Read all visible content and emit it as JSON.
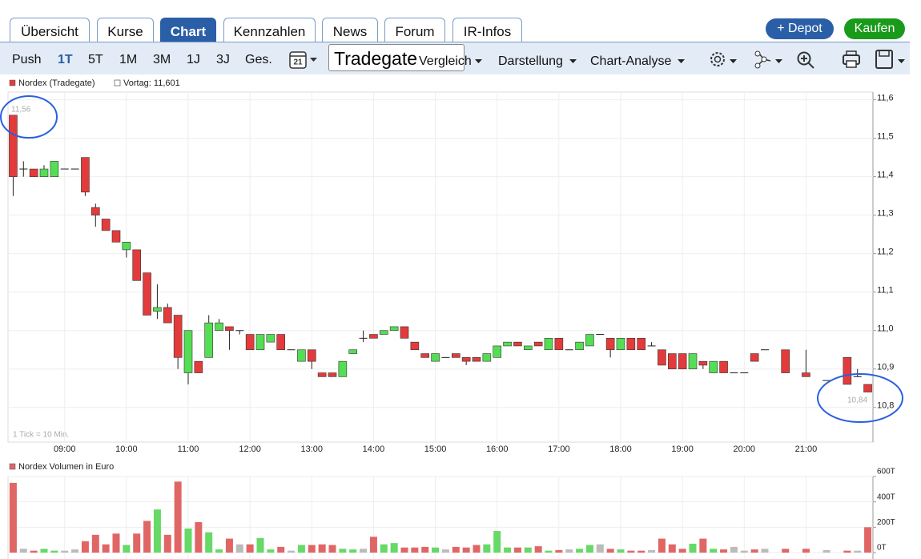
{
  "ui": {
    "tabs": [
      "Übersicht",
      "Kurse",
      "Chart",
      "Kennzahlen",
      "News",
      "Forum",
      "IR-Infos"
    ],
    "depot_button": "+ Depot",
    "buy_button": "Kaufen",
    "periods": [
      "Push",
      "1T",
      "5T",
      "1M",
      "3M",
      "1J",
      "3J",
      "Ges."
    ],
    "calendar_day": "21",
    "exchange": "Tradegate",
    "menus": [
      "Vergleich",
      "Darstellung",
      "Chart-Analyse"
    ]
  },
  "chart_data": [
    {
      "type": "candlestick",
      "series_name": "Nordex (Tradegate)",
      "previous_close_label": "Vortag: 11,601",
      "high_label": "11,56",
      "last_label": "10,84",
      "note": "1 Tick = 10 Min.",
      "up_color": "#55dd55",
      "down_color": "#e33b3b",
      "x": [
        "08:10",
        "08:20",
        "08:30",
        "08:40",
        "08:50",
        "09:00",
        "09:10",
        "09:20",
        "09:30",
        "09:40",
        "09:50",
        "10:00",
        "10:10",
        "10:20",
        "10:30",
        "10:40",
        "10:50",
        "11:00",
        "11:10",
        "11:20",
        "11:30",
        "11:40",
        "11:50",
        "12:00",
        "12:10",
        "12:20",
        "12:30",
        "12:40",
        "12:50",
        "13:00",
        "13:10",
        "13:20",
        "13:30",
        "13:40",
        "13:50",
        "14:00",
        "14:10",
        "14:20",
        "14:30",
        "14:40",
        "14:50",
        "15:00",
        "15:10",
        "15:20",
        "15:30",
        "15:40",
        "15:50",
        "16:00",
        "16:10",
        "16:20",
        "16:30",
        "16:40",
        "16:50",
        "17:00",
        "17:10",
        "17:20",
        "17:30",
        "17:40",
        "17:50",
        "18:00",
        "18:10",
        "18:20",
        "18:30",
        "18:40",
        "18:50",
        "19:00",
        "19:10",
        "19:20",
        "19:30",
        "19:40",
        "19:50",
        "20:00",
        "20:10",
        "20:20",
        "20:40",
        "21:00",
        "21:20",
        "21:40",
        "21:50",
        "22:00"
      ],
      "open": [
        11.56,
        11.42,
        11.42,
        11.4,
        11.4,
        11.42,
        11.42,
        11.45,
        11.32,
        11.29,
        11.26,
        11.21,
        11.21,
        11.15,
        11.05,
        11.06,
        11.04,
        10.89,
        10.92,
        10.93,
        11.0,
        11.01,
        11.0,
        10.99,
        10.95,
        10.97,
        10.99,
        10.95,
        10.92,
        10.95,
        10.89,
        10.89,
        10.88,
        10.94,
        10.98,
        10.99,
        10.99,
        11.0,
        11.01,
        10.97,
        10.94,
        10.92,
        10.93,
        10.94,
        10.93,
        10.93,
        10.92,
        10.93,
        10.96,
        10.97,
        10.95,
        10.97,
        10.95,
        10.98,
        10.95,
        10.95,
        10.96,
        10.99,
        10.98,
        10.95,
        10.98,
        10.98,
        10.96,
        10.95,
        10.94,
        10.94,
        10.9,
        10.92,
        10.89,
        10.92,
        10.89,
        10.89,
        10.94,
        10.95,
        10.95,
        10.89,
        10.87,
        10.93,
        10.88,
        10.86
      ],
      "high": [
        11.56,
        11.44,
        11.42,
        11.43,
        11.44,
        11.42,
        11.42,
        11.45,
        11.33,
        11.29,
        11.26,
        11.23,
        11.21,
        11.15,
        11.12,
        11.07,
        11.04,
        11.0,
        10.92,
        11.04,
        11.03,
        11.01,
        11.0,
        10.99,
        10.99,
        10.99,
        10.99,
        10.95,
        10.95,
        10.95,
        10.89,
        10.89,
        10.92,
        10.95,
        11.0,
        10.99,
        11.0,
        11.01,
        11.01,
        10.97,
        10.94,
        10.94,
        10.93,
        10.94,
        10.93,
        10.93,
        10.94,
        10.96,
        10.97,
        10.97,
        10.96,
        10.97,
        10.98,
        10.98,
        10.95,
        10.97,
        10.99,
        10.99,
        10.98,
        10.98,
        10.98,
        10.98,
        10.97,
        10.95,
        10.94,
        10.94,
        10.94,
        10.92,
        10.92,
        10.92,
        10.89,
        10.89,
        10.94,
        10.95,
        10.95,
        10.95,
        10.87,
        10.93,
        10.9,
        10.86
      ],
      "low": [
        11.35,
        11.4,
        11.4,
        11.4,
        11.4,
        11.42,
        11.42,
        11.35,
        11.27,
        11.26,
        11.23,
        11.19,
        11.13,
        11.04,
        11.03,
        11.02,
        10.9,
        10.86,
        10.89,
        10.93,
        11.0,
        10.95,
        10.99,
        10.95,
        10.95,
        10.97,
        10.95,
        10.95,
        10.92,
        10.9,
        10.88,
        10.88,
        10.88,
        10.94,
        10.97,
        10.98,
        10.99,
        11.0,
        10.98,
        10.95,
        10.93,
        10.92,
        10.93,
        10.93,
        10.91,
        10.92,
        10.92,
        10.93,
        10.96,
        10.96,
        10.95,
        10.96,
        10.95,
        10.95,
        10.95,
        10.95,
        10.96,
        10.99,
        10.93,
        10.95,
        10.95,
        10.95,
        10.96,
        10.91,
        10.9,
        10.9,
        10.9,
        10.9,
        10.89,
        10.89,
        10.89,
        10.89,
        10.92,
        10.95,
        10.89,
        10.88,
        10.87,
        10.86,
        10.88,
        10.84
      ],
      "close": [
        11.4,
        11.42,
        11.4,
        11.42,
        11.44,
        11.42,
        11.42,
        11.36,
        11.3,
        11.26,
        11.23,
        11.23,
        11.13,
        11.04,
        11.06,
        11.02,
        10.93,
        11.0,
        10.89,
        11.02,
        11.02,
        11.0,
        11.0,
        10.95,
        10.99,
        10.99,
        10.95,
        10.95,
        10.95,
        10.92,
        10.88,
        10.88,
        10.92,
        10.95,
        10.98,
        10.98,
        11.0,
        11.01,
        10.98,
        10.95,
        10.93,
        10.94,
        10.93,
        10.93,
        10.92,
        10.92,
        10.94,
        10.96,
        10.97,
        10.96,
        10.96,
        10.96,
        10.98,
        10.95,
        10.95,
        10.97,
        10.99,
        10.99,
        10.95,
        10.98,
        10.95,
        10.95,
        10.96,
        10.91,
        10.9,
        10.9,
        10.94,
        10.91,
        10.92,
        10.89,
        10.89,
        10.89,
        10.92,
        10.95,
        10.89,
        10.88,
        10.87,
        10.86,
        10.88,
        10.84
      ],
      "xlim": [
        "08:05",
        "22:05"
      ],
      "xticks": [
        "09:00",
        "10:00",
        "11:00",
        "12:00",
        "13:00",
        "14:00",
        "15:00",
        "16:00",
        "17:00",
        "18:00",
        "19:00",
        "20:00",
        "21:00"
      ],
      "ylim": [
        10.71,
        11.62
      ],
      "yticks": [
        {
          "value": 10.8,
          "label": "10,8"
        },
        {
          "value": 10.9,
          "label": "10,9"
        },
        {
          "value": 11.0,
          "label": "11,0"
        },
        {
          "value": 11.1,
          "label": "11,1"
        },
        {
          "value": 11.2,
          "label": "11,2"
        },
        {
          "value": 11.3,
          "label": "11,3"
        },
        {
          "value": 11.4,
          "label": "11,4"
        },
        {
          "value": 11.5,
          "label": "11,5"
        },
        {
          "value": 11.6,
          "label": "11,6"
        }
      ],
      "grid": true
    },
    {
      "type": "bar",
      "series_name": "Nordex Volumen in Euro",
      "color": "#e06666",
      "up_color": "#66d966",
      "down_color": "#e06666",
      "flat_color": "#bbbbbb",
      "values": [
        550000,
        30000,
        15000,
        30000,
        15000,
        15000,
        25000,
        90000,
        140000,
        65000,
        150000,
        60000,
        150000,
        250000,
        340000,
        140000,
        560000,
        190000,
        240000,
        160000,
        25000,
        110000,
        65000,
        65000,
        115000,
        25000,
        45000,
        15000,
        60000,
        60000,
        65000,
        60000,
        30000,
        25000,
        30000,
        125000,
        65000,
        75000,
        40000,
        40000,
        45000,
        40000,
        25000,
        45000,
        40000,
        60000,
        65000,
        170000,
        40000,
        40000,
        40000,
        50000,
        15000,
        20000,
        25000,
        30000,
        60000,
        65000,
        30000,
        25000,
        15000,
        15000,
        20000,
        110000,
        65000,
        30000,
        70000,
        110000,
        30000,
        25000,
        45000,
        15000,
        25000,
        30000,
        30000,
        30000,
        20000,
        15000,
        15000,
        200000
      ],
      "ylim": [
        0,
        600000
      ],
      "yticks": [
        {
          "value": 0,
          "label": "0T"
        },
        {
          "value": 200000,
          "label": "200T"
        },
        {
          "value": 400000,
          "label": "400T"
        },
        {
          "value": 600000,
          "label": "600T"
        }
      ],
      "grid": true
    }
  ]
}
